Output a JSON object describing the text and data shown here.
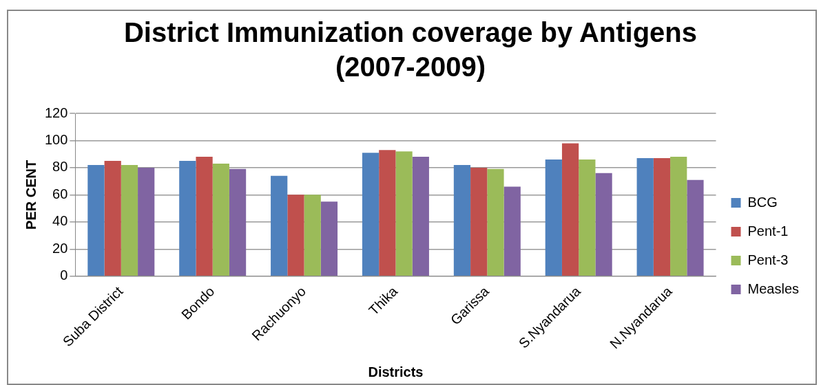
{
  "chart_data": {
    "type": "bar",
    "title": "District Immunization coverage by Antigens (2007-2009)",
    "xlabel": "Districts",
    "ylabel": "PER CENT",
    "categories": [
      "Suba District",
      "Bondo",
      "Rachuonyo",
      "Thika",
      "Garissa",
      "S.Nyandarua",
      "N.Nyandarua"
    ],
    "series": [
      {
        "name": "BCG",
        "color": "#4f81bd",
        "values": [
          82,
          85,
          74,
          91,
          82,
          86,
          87
        ]
      },
      {
        "name": "Pent-1",
        "color": "#c0504d",
        "values": [
          85,
          88,
          60,
          93,
          80,
          98,
          87
        ]
      },
      {
        "name": "Pent-3",
        "color": "#9bbb59",
        "values": [
          82,
          83,
          60,
          92,
          79,
          86,
          88
        ]
      },
      {
        "name": "Measles",
        "color": "#8064a2",
        "values": [
          80,
          79,
          55,
          88,
          66,
          76,
          71
        ]
      }
    ],
    "ylim": [
      0,
      120
    ],
    "yticks": [
      0,
      20,
      40,
      60,
      80,
      100,
      120
    ],
    "grid": "y",
    "legend": "right"
  }
}
